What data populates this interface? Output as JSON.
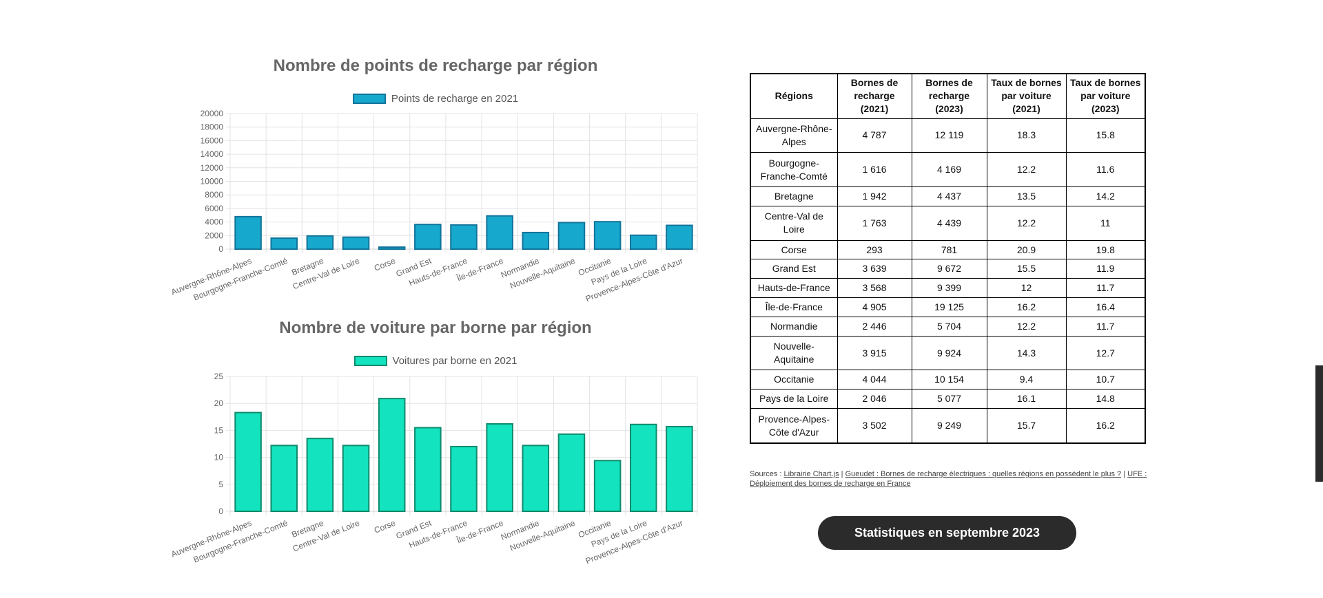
{
  "charts": {
    "recharge": {
      "title": "Nombre de points de recharge par région",
      "legend": "Points de recharge en 2021",
      "y_ticks": [
        "0",
        "2000",
        "4000",
        "6000",
        "8000",
        "10000",
        "12000",
        "14000",
        "16000",
        "18000",
        "20000"
      ]
    },
    "voitures": {
      "title": "Nombre de voiture par borne par région",
      "legend": "Voitures par borne en 2021",
      "y_ticks": [
        "0",
        "5",
        "10",
        "15",
        "20",
        "25"
      ]
    }
  },
  "chart_data": [
    {
      "type": "bar",
      "title": "Nombre de points de recharge par région",
      "categories": [
        "Auvergne-Rhône-Alpes",
        "Bourgogne-Franche-Comté",
        "Bretagne",
        "Centre-Val de Loire",
        "Corse",
        "Grand Est",
        "Hauts-de-France",
        "Île-de-France",
        "Normandie",
        "Nouvelle-Aquitaine",
        "Occitanie",
        "Pays de la Loire",
        "Provence-Alpes-Côte d'Azur"
      ],
      "series": [
        {
          "name": "Points de recharge en 2021",
          "values": [
            4787,
            1616,
            1942,
            1763,
            293,
            3639,
            3568,
            4905,
            2446,
            3915,
            4044,
            2046,
            3502
          ]
        }
      ],
      "ylim": [
        0,
        20000
      ],
      "grid": true,
      "legend_position": "top",
      "colors": {
        "fill": "#17a9cd",
        "border": "#13739a"
      }
    },
    {
      "type": "bar",
      "title": "Nombre de voiture par borne par région",
      "categories": [
        "Auvergne-Rhône-Alpes",
        "Bourgogne-Franche-Comté",
        "Bretagne",
        "Centre-Val de Loire",
        "Corse",
        "Grand Est",
        "Hauts-de-France",
        "Île-de-France",
        "Normandie",
        "Nouvelle-Aquitaine",
        "Occitanie",
        "Pays de la Loire",
        "Provence-Alpes-Côte d'Azur"
      ],
      "series": [
        {
          "name": "Voitures par borne en 2021",
          "values": [
            18.3,
            12.2,
            13.5,
            12.2,
            20.9,
            15.5,
            12,
            16.2,
            12.2,
            14.3,
            9.4,
            16.1,
            15.7
          ]
        }
      ],
      "ylim": [
        0,
        25
      ],
      "grid": true,
      "legend_position": "top",
      "colors": {
        "fill": "#13e3be",
        "border": "#0f8a6c"
      }
    }
  ],
  "table": {
    "headers": [
      "Régions",
      "Bornes de recharge (2021)",
      "Bornes de recharge (2023)",
      "Taux de bornes par voiture (2021)",
      "Taux de bornes par voiture (2023)"
    ],
    "rows": [
      [
        "Auvergne-Rhône-Alpes",
        "4 787",
        "12 119",
        "18.3",
        "15.8"
      ],
      [
        "Bourgogne-Franche-Comté",
        "1 616",
        "4 169",
        "12.2",
        "11.6"
      ],
      [
        "Bretagne",
        "1 942",
        "4 437",
        "13.5",
        "14.2"
      ],
      [
        "Centre-Val de Loire",
        "1 763",
        "4 439",
        "12.2",
        "11"
      ],
      [
        "Corse",
        "293",
        "781",
        "20.9",
        "19.8"
      ],
      [
        "Grand Est",
        "3 639",
        "9 672",
        "15.5",
        "11.9"
      ],
      [
        "Hauts-de-France",
        "3 568",
        "9 399",
        "12",
        "11.7"
      ],
      [
        "Île-de-France",
        "4 905",
        "19 125",
        "16.2",
        "16.4"
      ],
      [
        "Normandie",
        "2 446",
        "5 704",
        "12.2",
        "11.7"
      ],
      [
        "Nouvelle-Aquitaine",
        "3 915",
        "9 924",
        "14.3",
        "12.7"
      ],
      [
        "Occitanie",
        "4 044",
        "10 154",
        "9.4",
        "10.7"
      ],
      [
        "Pays de la Loire",
        "2 046",
        "5 077",
        "16.1",
        "14.8"
      ],
      [
        "Provence-Alpes-Côte d'Azur",
        "3 502",
        "9 249",
        "15.7",
        "16.2"
      ]
    ]
  },
  "sources": {
    "prefix": "Sources : ",
    "links": [
      "Librairie Chart.js",
      "Gueudet : Bornes de recharge électriques : quelles régions en possèdent le plus ?",
      "UFE : Déploiement des bornes de recharge en France"
    ],
    "separator": " | "
  },
  "button": {
    "label": "Statistiques en septembre 2023"
  },
  "colors": {
    "button_bg": "#2b2b2b",
    "title": "#666666"
  }
}
